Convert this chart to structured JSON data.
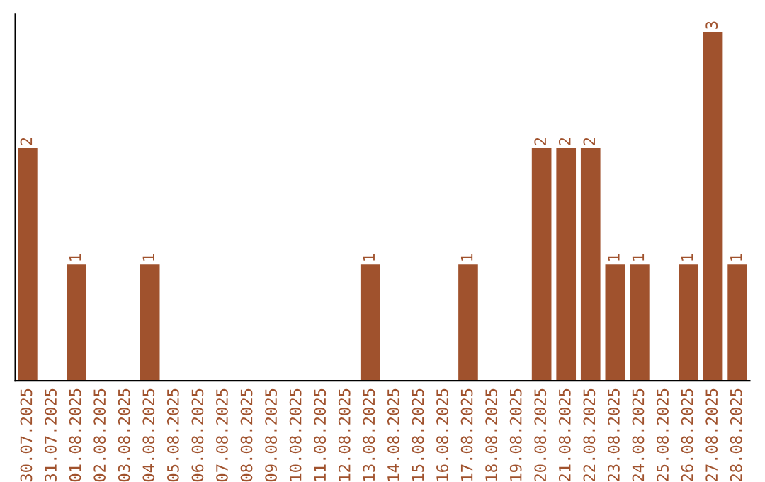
{
  "chart_data": {
    "type": "bar",
    "categories": [
      "30.07.2025",
      "31.07.2025",
      "01.08.2025",
      "02.08.2025",
      "03.08.2025",
      "04.08.2025",
      "05.08.2025",
      "06.08.2025",
      "07.08.2025",
      "08.08.2025",
      "09.08.2025",
      "10.08.2025",
      "11.08.2025",
      "12.08.2025",
      "13.08.2025",
      "14.08.2025",
      "15.08.2025",
      "16.08.2025",
      "17.08.2025",
      "18.08.2025",
      "19.08.2025",
      "20.08.2025",
      "21.08.2025",
      "22.08.2025",
      "23.08.2025",
      "24.08.2025",
      "25.08.2025",
      "26.08.2025",
      "27.08.2025",
      "28.08.2025"
    ],
    "values": [
      2,
      0,
      1,
      0,
      0,
      1,
      0,
      0,
      0,
      0,
      0,
      0,
      0,
      0,
      1,
      0,
      0,
      0,
      1,
      0,
      0,
      2,
      2,
      2,
      1,
      1,
      0,
      1,
      3,
      1
    ],
    "value_labels": [
      "2",
      null,
      "1",
      null,
      null,
      "1",
      null,
      null,
      null,
      null,
      null,
      null,
      null,
      null,
      "1",
      null,
      null,
      null,
      "1",
      null,
      null,
      "2",
      "2",
      "2",
      "1",
      "1",
      null,
      "1",
      "3",
      "1"
    ],
    "color": "#a0522d",
    "grid": false,
    "legend": false,
    "tick_labels": "x"
  }
}
